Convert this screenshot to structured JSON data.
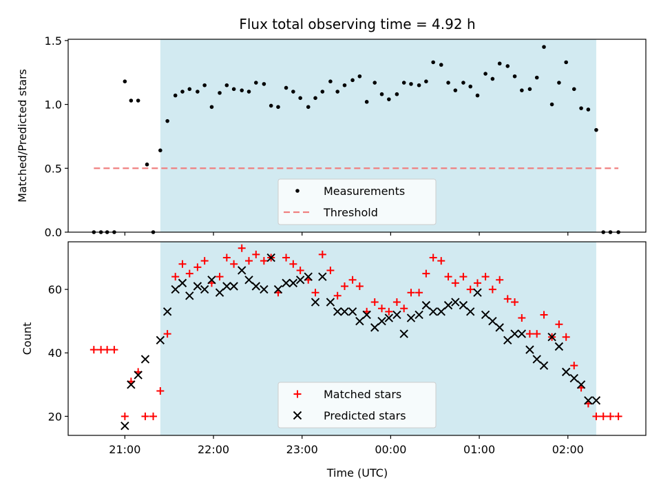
{
  "figure": {
    "title": "Flux total observing time = 4.92 h",
    "xlabel": "Time (UTC)"
  },
  "chart_data": [
    {
      "type": "scatter",
      "title": "Flux total observing time = 4.92 h",
      "xlabel": "",
      "ylabel": "Matched/Predicted stars",
      "x_unit": "hours since 21:00 UTC on the day of the first measurement (day rolls over at 00:00)",
      "xlim": [
        -0.64,
        5.88
      ],
      "ylim": [
        0,
        1.51
      ],
      "yticks": [
        0.0,
        0.5,
        1.0,
        1.5
      ],
      "ytick_labels": [
        "0.0",
        "0.5",
        "1.0",
        "1.5"
      ],
      "xtick_times": [
        0,
        1,
        2,
        3,
        4,
        5
      ],
      "grid": false,
      "legend_position": "bottom-center",
      "shaded_interval": {
        "x_start": 0.4,
        "x_end": 5.32,
        "color": "#add8e6"
      },
      "series": [
        {
          "name": "Measurements",
          "marker": "dot",
          "color": "#000000",
          "x": [
            -0.35,
            -0.27,
            -0.2,
            -0.12,
            0.0,
            0.07,
            0.15,
            0.25,
            0.32,
            0.4,
            0.48,
            0.57,
            0.65,
            0.73,
            0.82,
            0.9,
            0.98,
            1.07,
            1.15,
            1.23,
            1.32,
            1.4,
            1.48,
            1.57,
            1.65,
            1.73,
            1.82,
            1.9,
            1.98,
            2.07,
            2.15,
            2.23,
            2.32,
            2.4,
            2.48,
            2.57,
            2.65,
            2.73,
            2.82,
            2.9,
            2.98,
            3.07,
            3.15,
            3.23,
            3.32,
            3.4,
            3.48,
            3.57,
            3.65,
            3.73,
            3.82,
            3.9,
            3.98,
            4.07,
            4.15,
            4.23,
            4.32,
            4.4,
            4.48,
            4.57,
            4.65,
            4.73,
            4.82,
            4.9,
            4.98,
            5.07,
            5.15,
            5.23,
            5.32,
            5.4,
            5.48,
            5.57
          ],
          "y": [
            0.0,
            0.0,
            0.0,
            0.0,
            1.18,
            1.03,
            1.03,
            0.53,
            0.0,
            0.64,
            0.87,
            1.07,
            1.1,
            1.12,
            1.1,
            1.15,
            0.98,
            1.09,
            1.15,
            1.12,
            1.11,
            1.1,
            1.17,
            1.16,
            0.99,
            0.98,
            1.13,
            1.1,
            1.05,
            0.98,
            1.05,
            1.1,
            1.18,
            1.1,
            1.15,
            1.19,
            1.22,
            1.02,
            1.17,
            1.08,
            1.04,
            1.08,
            1.17,
            1.16,
            1.15,
            1.18,
            1.33,
            1.31,
            1.17,
            1.11,
            1.17,
            1.14,
            1.07,
            1.24,
            1.2,
            1.32,
            1.3,
            1.22,
            1.11,
            1.12,
            1.21,
            1.45,
            1.0,
            1.17,
            1.33,
            1.12,
            0.97,
            0.96,
            0.8,
            0.0,
            0.0,
            0.0
          ]
        },
        {
          "name": "Threshold",
          "style": "dashed",
          "color": "#f08080",
          "x": [
            -0.35,
            5.57
          ],
          "y": [
            0.5,
            0.5
          ]
        }
      ]
    },
    {
      "type": "scatter",
      "title": "",
      "xlabel": "Time (UTC)",
      "ylabel": "Count",
      "x_unit": "hours since 21:00 UTC on the day of the first measurement (day rolls over at 00:00)",
      "xlim": [
        -0.64,
        5.88
      ],
      "ylim": [
        14,
        75
      ],
      "yticks": [
        20,
        40,
        60
      ],
      "ytick_labels": [
        "20",
        "40",
        "60"
      ],
      "xtick_times": [
        0,
        1,
        2,
        3,
        4,
        5
      ],
      "xtick_labels": [
        "21:00",
        "22:00",
        "23:00",
        "00:00",
        "01:00",
        "02:00"
      ],
      "grid": false,
      "legend_position": "bottom-center",
      "shaded_interval": {
        "x_start": 0.4,
        "x_end": 5.32,
        "color": "#add8e6"
      },
      "series": [
        {
          "name": "Matched stars",
          "marker": "plus",
          "color": "#ff0000",
          "x": [
            -0.35,
            -0.27,
            -0.2,
            -0.12,
            0.0,
            0.07,
            0.15,
            0.23,
            0.32,
            0.4,
            0.48,
            0.57,
            0.65,
            0.73,
            0.82,
            0.9,
            0.98,
            1.07,
            1.15,
            1.23,
            1.32,
            1.4,
            1.48,
            1.57,
            1.65,
            1.73,
            1.82,
            1.9,
            1.98,
            2.07,
            2.15,
            2.23,
            2.32,
            2.4,
            2.48,
            2.57,
            2.65,
            2.73,
            2.82,
            2.9,
            2.98,
            3.07,
            3.15,
            3.23,
            3.32,
            3.4,
            3.48,
            3.57,
            3.65,
            3.73,
            3.82,
            3.9,
            3.98,
            4.07,
            4.15,
            4.23,
            4.32,
            4.4,
            4.48,
            4.57,
            4.65,
            4.73,
            4.82,
            4.9,
            4.98,
            5.07,
            5.15,
            5.23,
            5.32,
            5.4,
            5.48,
            5.57
          ],
          "y": [
            41,
            41,
            41,
            41,
            20,
            31,
            34,
            20,
            20,
            28,
            46,
            64,
            68,
            65,
            67,
            69,
            62,
            64,
            70,
            68,
            73,
            69,
            71,
            69,
            70,
            59,
            70,
            68,
            66,
            63,
            59,
            71,
            66,
            58,
            61,
            63,
            61,
            53,
            56,
            54,
            53,
            56,
            54,
            59,
            59,
            65,
            70,
            69,
            64,
            62,
            64,
            60,
            62,
            64,
            60,
            63,
            57,
            56,
            51,
            46,
            46,
            52,
            45,
            49,
            45,
            36,
            29,
            24,
            20,
            20,
            20,
            20
          ]
        },
        {
          "name": "Predicted stars",
          "marker": "x",
          "color": "#000000",
          "x": [
            0.0,
            0.07,
            0.15,
            0.23,
            0.4,
            0.48,
            0.57,
            0.65,
            0.73,
            0.82,
            0.9,
            0.98,
            1.07,
            1.15,
            1.23,
            1.32,
            1.4,
            1.48,
            1.57,
            1.65,
            1.73,
            1.82,
            1.9,
            1.98,
            2.07,
            2.15,
            2.23,
            2.32,
            2.4,
            2.48,
            2.57,
            2.65,
            2.73,
            2.82,
            2.9,
            2.98,
            3.07,
            3.15,
            3.23,
            3.32,
            3.4,
            3.48,
            3.57,
            3.65,
            3.73,
            3.82,
            3.9,
            3.98,
            4.07,
            4.15,
            4.23,
            4.32,
            4.4,
            4.48,
            4.57,
            4.65,
            4.73,
            4.82,
            4.9,
            4.98,
            5.07,
            5.15,
            5.23,
            5.32
          ],
          "y": [
            17,
            30,
            33,
            38,
            44,
            53,
            60,
            62,
            58,
            61,
            60,
            63,
            59,
            61,
            61,
            66,
            63,
            61,
            60,
            70,
            60,
            62,
            62,
            63,
            64,
            56,
            64,
            56,
            53,
            53,
            53,
            50,
            52,
            48,
            50,
            51,
            52,
            46,
            51,
            52,
            55,
            53,
            53,
            55,
            56,
            55,
            53,
            59,
            52,
            50,
            48,
            44,
            46,
            46,
            41,
            38,
            36,
            45,
            42,
            34,
            32,
            30,
            25,
            25
          ]
        }
      ]
    }
  ]
}
